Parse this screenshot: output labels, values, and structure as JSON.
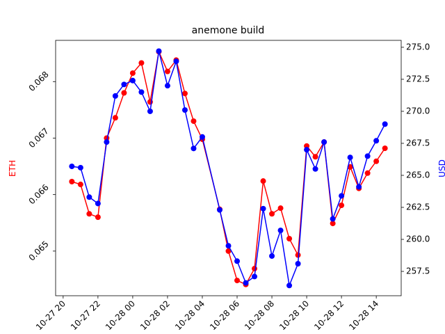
{
  "chart_data": {
    "type": "line",
    "title": "anemone build",
    "ylabel": "ETH",
    "y2label": "USD",
    "x": [
      "10-27 20:30",
      "10-27 21:00",
      "10-27 21:30",
      "10-27 22:00",
      "10-27 22:30",
      "10-27 23:00",
      "10-27 23:30",
      "10-28 00:00",
      "10-28 00:30",
      "10-28 01:00",
      "10-28 01:30",
      "10-28 02:00",
      "10-28 02:30",
      "10-28 03:00",
      "10-28 03:30",
      "10-28 04:00",
      "10-28 05:00",
      "10-28 05:30",
      "10-28 06:00",
      "10-28 06:30",
      "10-28 07:00",
      "10-28 07:30",
      "10-28 08:00",
      "10-28 08:30",
      "10-28 09:00",
      "10-28 09:30",
      "10-28 10:00",
      "10-28 10:30",
      "10-28 11:00",
      "10-28 11:30",
      "10-28 12:00",
      "10-28 12:30",
      "10-28 13:00",
      "10-28 13:30",
      "10-28 14:00",
      "10-28 14:30"
    ],
    "series": [
      {
        "name": "ETH",
        "color": "#ff0000",
        "axis": "y",
        "values": [
          0.06623,
          0.06618,
          0.06566,
          0.0656,
          0.067,
          0.06736,
          0.0678,
          0.06815,
          0.06833,
          0.06764,
          0.06853,
          0.06818,
          0.06838,
          0.06779,
          0.0673,
          0.06698,
          0.06574,
          0.065,
          0.06448,
          0.06441,
          0.06469,
          0.06624,
          0.06566,
          0.06576,
          0.06522,
          0.06493,
          0.06686,
          0.06667,
          0.06693,
          0.06549,
          0.06581,
          0.06649,
          0.06611,
          0.06638,
          0.06659,
          0.06682
        ]
      },
      {
        "name": "USD",
        "color": "#0000ff",
        "axis": "y2",
        "values": [
          265.7,
          265.6,
          263.3,
          262.8,
          267.6,
          271.2,
          272.1,
          272.4,
          271.5,
          270.0,
          274.7,
          272.0,
          273.9,
          270.1,
          267.1,
          268.0,
          262.3,
          259.5,
          258.3,
          256.6,
          257.1,
          262.4,
          258.7,
          260.7,
          256.4,
          258.1,
          267.0,
          265.5,
          267.6,
          261.6,
          263.4,
          266.4,
          264.1,
          266.5,
          267.7,
          269.0
        ]
      }
    ],
    "xlim": [
      "10-27 19:34",
      "10-28 15:26"
    ],
    "xticks": [
      "10-27 20",
      "10-27 22",
      "10-28 00",
      "10-28 02",
      "10-28 04",
      "10-28 06",
      "10-28 08",
      "10-28 10",
      "10-28 12",
      "10-28 14"
    ],
    "ylim": [
      0.06421,
      0.06873
    ],
    "yticks": [
      0.065,
      0.066,
      0.067,
      0.068
    ],
    "y2lim": [
      255.6,
      275.54
    ],
    "y2ticks": [
      257.5,
      {
        "value": 260,
        "label": "260.0"
      },
      262.5,
      {
        "value": 265,
        "label": "265.0"
      },
      267.5,
      {
        "value": 270,
        "label": "270.0"
      },
      272.5,
      {
        "value": 275,
        "label": "275.0"
      }
    ]
  }
}
